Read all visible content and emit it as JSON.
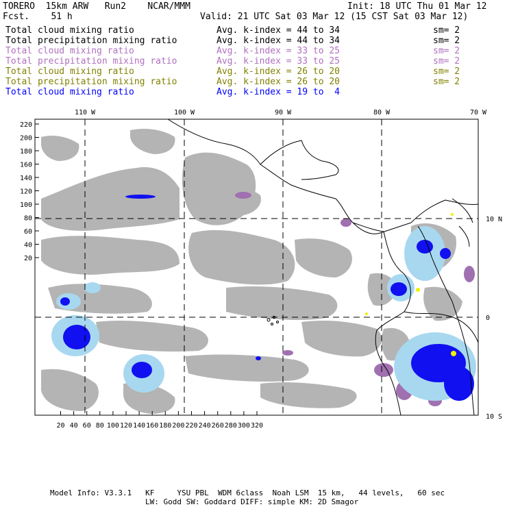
{
  "header": {
    "model": "TORERO  15km ARW   Run2    NCAR/MMM",
    "init": "Init: 18 UTC Thu 01 Mar 12",
    "fcst": "Fcst.    51 h",
    "valid": "Valid: 21 UTC Sat 03 Mar 12 (15 CST Sat 03 Mar 12)"
  },
  "legend": [
    {
      "field": "Total cloud mixing ratio",
      "stat": "Avg. k-index = 44 to 34",
      "sm": "sm= 2",
      "color": "#000000"
    },
    {
      "field": "Total precipitation mixing ratio",
      "stat": "Avg. k-index = 44 to 34",
      "sm": "sm= 2",
      "color": "#000000"
    },
    {
      "field": "Total cloud mixing ratio",
      "stat": "Avg. k-index = 33 to 25",
      "sm": "sm= 2",
      "color": "#b070c0"
    },
    {
      "field": "Total precipitation mixing ratio",
      "stat": "Avg. k-index = 33 to 25",
      "sm": "sm= 2",
      "color": "#b070c0"
    },
    {
      "field": "Total cloud mixing ratio",
      "stat": "Avg. k-index = 26 to 20",
      "sm": "sm= 2",
      "color": "#808000"
    },
    {
      "field": "Total precipitation mixing ratio",
      "stat": "Avg. k-index = 26 to 20",
      "sm": "sm= 2",
      "color": "#808000"
    },
    {
      "field": "Total cloud mixing ratio",
      "stat": "Avg. k-index = 19 to  4",
      "sm": "",
      "color": "#0000ff"
    }
  ],
  "map": {
    "lon_labels": [
      "110 W",
      "100 W",
      "90 W",
      "80 W",
      "70 W"
    ],
    "lat_labels": [
      "10 N",
      "0",
      "10 S"
    ],
    "x_ticks": [
      "20",
      "40",
      "60",
      "80",
      "100",
      "120",
      "140",
      "160",
      "180",
      "200",
      "220",
      "240",
      "260",
      "280",
      "300",
      "320"
    ],
    "y_ticks": [
      "220",
      "200",
      "180",
      "160",
      "140",
      "120",
      "100",
      "80",
      "60",
      "40",
      "20"
    ],
    "colors": {
      "cloud_gray": "#b4b4b4",
      "purple": "#a070b0",
      "blue": "#0000ff",
      "light_blue": "#a8d8f0",
      "yellow": "#f0f000"
    }
  },
  "footer": {
    "line1": "Model Info: V3.3.1   KF     YSU PBL  WDM 6class  Noah LSM  15 km,   44 levels,   60 sec",
    "line2": "LW: Godd SW: Goddard DIFF: simple KM: 2D Smagor"
  }
}
